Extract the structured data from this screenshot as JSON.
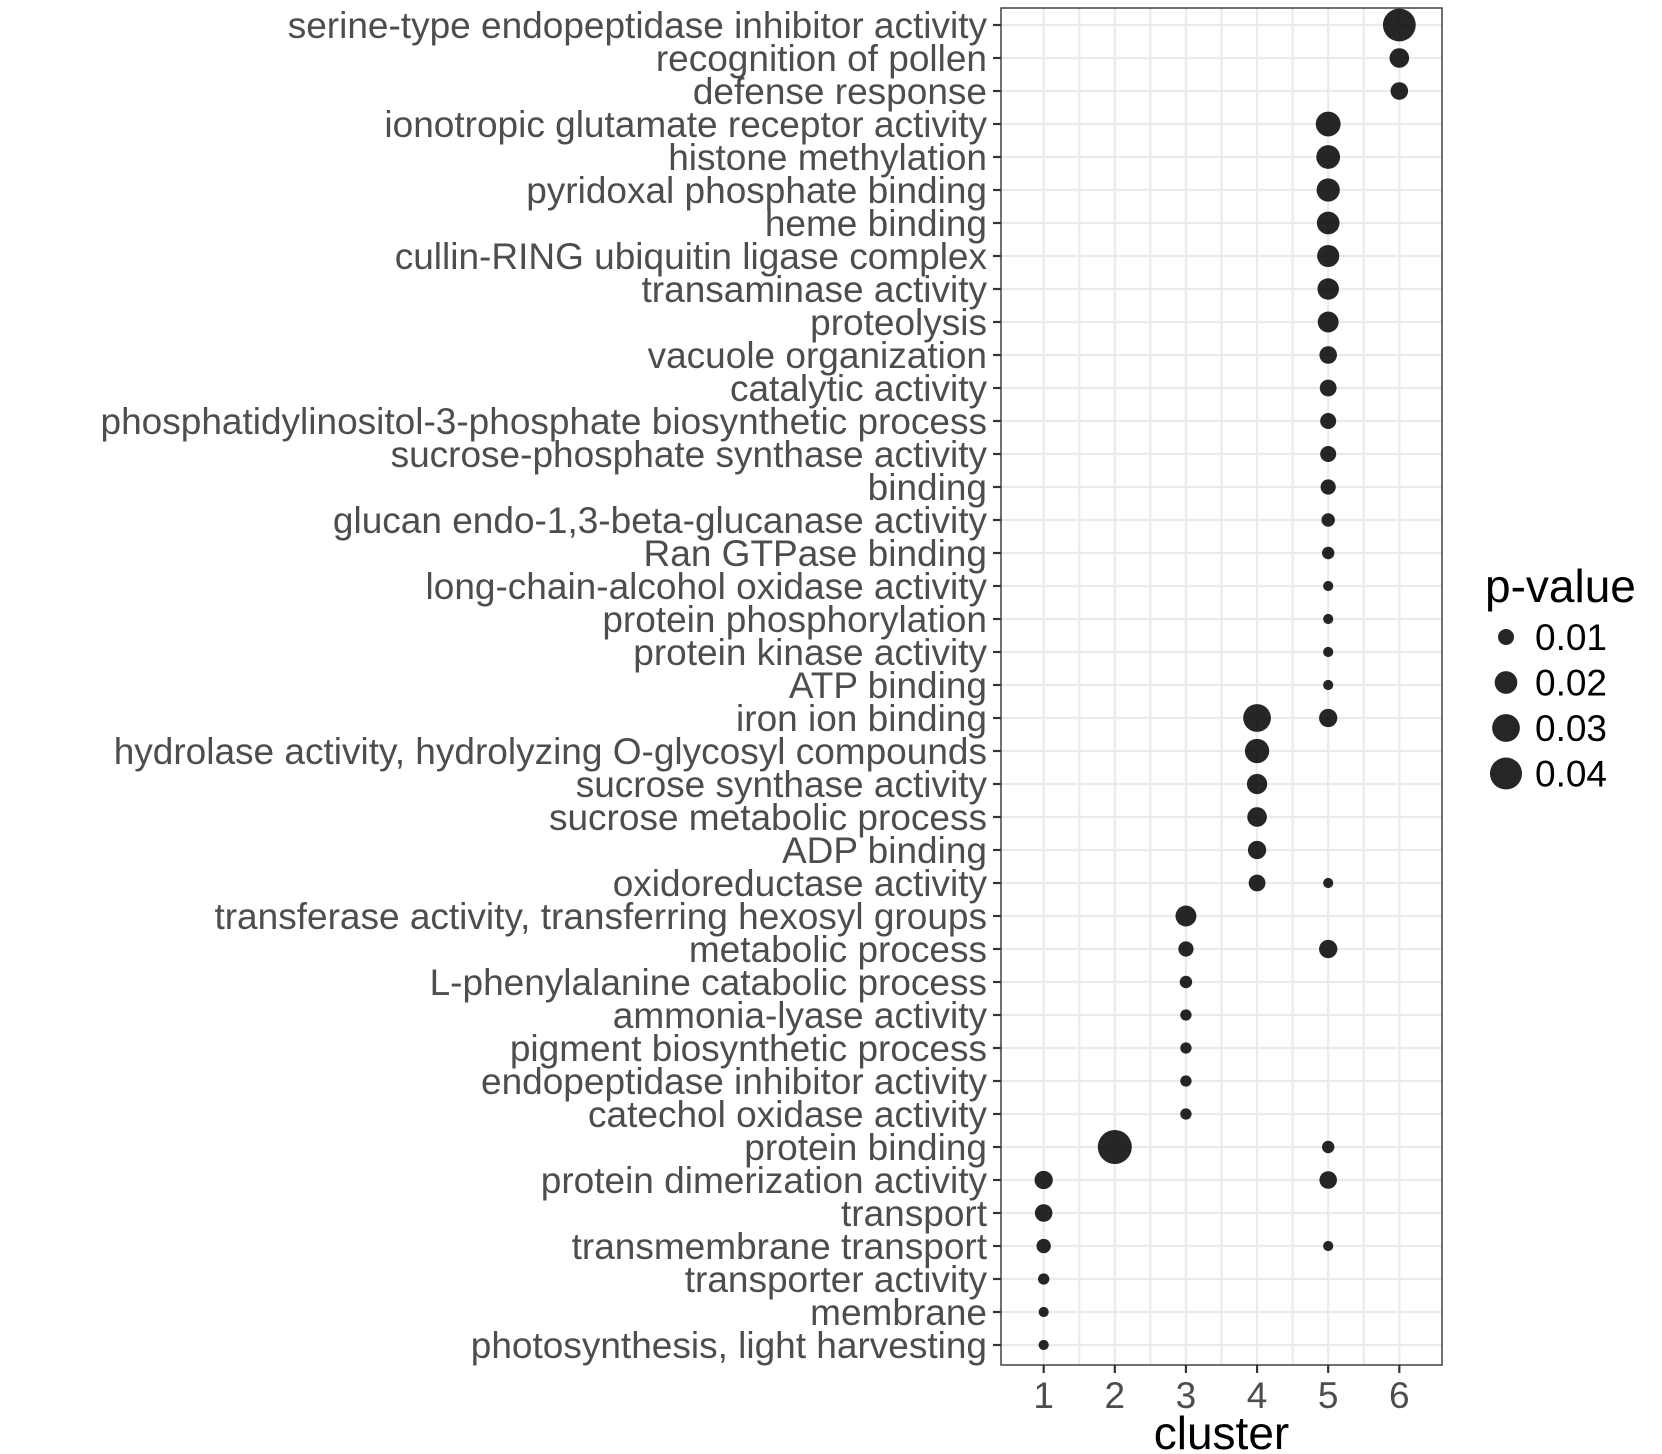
{
  "chart_data": {
    "type": "scatter",
    "xlabel": "cluster",
    "ylabel": "",
    "x_ticks": [
      "1",
      "2",
      "3",
      "4",
      "5",
      "6"
    ],
    "xlim": [
      0.4,
      6.6
    ],
    "grid": true,
    "legend": {
      "title": "p-value",
      "placement": "right",
      "items": [
        {
          "label": "0.01",
          "value": 0.01
        },
        {
          "label": "0.02",
          "value": 0.02
        },
        {
          "label": "0.03",
          "value": 0.03
        },
        {
          "label": "0.04",
          "value": 0.04
        }
      ]
    },
    "point_color": "#000000",
    "categories": [
      "serine-type endopeptidase inhibitor activity",
      "recognition of pollen",
      "defense response",
      "ionotropic glutamate receptor activity",
      "histone methylation",
      "pyridoxal phosphate binding",
      "heme binding",
      "cullin-RING ubiquitin ligase complex",
      "transaminase activity",
      "proteolysis",
      "vacuole organization",
      "catalytic activity",
      "phosphatidylinositol-3-phosphate biosynthetic process",
      "sucrose-phosphate synthase activity",
      "binding",
      "glucan endo-1,3-beta-glucanase activity",
      "Ran GTPase binding",
      "long-chain-alcohol oxidase activity",
      "protein phosphorylation",
      "protein kinase activity",
      "ATP binding",
      "iron ion binding",
      "hydrolase activity, hydrolyzing O-glycosyl compounds",
      "sucrose synthase activity",
      "sucrose metabolic process",
      "ADP binding",
      "oxidoreductase activity",
      "transferase activity, transferring hexosyl groups",
      "metabolic process",
      "L-phenylalanine catabolic process",
      "ammonia-lyase activity",
      "pigment biosynthetic process",
      "endopeptidase inhibitor activity",
      "catechol oxidase activity",
      "protein binding",
      "protein dimerization activity",
      "transport",
      "transmembrane transport",
      "transporter activity",
      "membrane",
      "photosynthesis, light harvesting"
    ],
    "points": [
      {
        "term": "serine-type endopeptidase inhibitor activity",
        "cluster": 6,
        "pvalue": 0.042
      },
      {
        "term": "recognition of pollen",
        "cluster": 6,
        "pvalue": 0.015
      },
      {
        "term": "defense response",
        "cluster": 6,
        "pvalue": 0.012
      },
      {
        "term": "ionotropic glutamate receptor activity",
        "cluster": 5,
        "pvalue": 0.024
      },
      {
        "term": "histone methylation",
        "cluster": 5,
        "pvalue": 0.022
      },
      {
        "term": "pyridoxal phosphate binding",
        "cluster": 5,
        "pvalue": 0.021
      },
      {
        "term": "heme binding",
        "cluster": 5,
        "pvalue": 0.02
      },
      {
        "term": "cullin-RING ubiquitin ligase complex",
        "cluster": 5,
        "pvalue": 0.019
      },
      {
        "term": "transaminase activity",
        "cluster": 5,
        "pvalue": 0.018
      },
      {
        "term": "proteolysis",
        "cluster": 5,
        "pvalue": 0.017
      },
      {
        "term": "vacuole organization",
        "cluster": 5,
        "pvalue": 0.012
      },
      {
        "term": "catalytic activity",
        "cluster": 5,
        "pvalue": 0.011
      },
      {
        "term": "phosphatidylinositol-3-phosphate biosynthetic process",
        "cluster": 5,
        "pvalue": 0.01
      },
      {
        "term": "sucrose-phosphate synthase activity",
        "cluster": 5,
        "pvalue": 0.01
      },
      {
        "term": "binding",
        "cluster": 5,
        "pvalue": 0.009
      },
      {
        "term": "glucan endo-1,3-beta-glucanase activity",
        "cluster": 5,
        "pvalue": 0.007
      },
      {
        "term": "Ran GTPase binding",
        "cluster": 5,
        "pvalue": 0.006
      },
      {
        "term": "long-chain-alcohol oxidase activity",
        "cluster": 5,
        "pvalue": 0.004
      },
      {
        "term": "protein phosphorylation",
        "cluster": 5,
        "pvalue": 0.004
      },
      {
        "term": "protein kinase activity",
        "cluster": 5,
        "pvalue": 0.004
      },
      {
        "term": "ATP binding",
        "cluster": 5,
        "pvalue": 0.004
      },
      {
        "term": "iron ion binding",
        "cluster": 4,
        "pvalue": 0.03
      },
      {
        "term": "iron ion binding",
        "cluster": 5,
        "pvalue": 0.013
      },
      {
        "term": "hydrolase activity, hydrolyzing O-glycosyl compounds",
        "cluster": 4,
        "pvalue": 0.023
      },
      {
        "term": "sucrose synthase activity",
        "cluster": 4,
        "pvalue": 0.016
      },
      {
        "term": "sucrose metabolic process",
        "cluster": 4,
        "pvalue": 0.015
      },
      {
        "term": "ADP binding",
        "cluster": 4,
        "pvalue": 0.013
      },
      {
        "term": "oxidoreductase activity",
        "cluster": 4,
        "pvalue": 0.011
      },
      {
        "term": "oxidoreductase activity",
        "cluster": 5,
        "pvalue": 0.004
      },
      {
        "term": "transferase activity, transferring hexosyl groups",
        "cluster": 3,
        "pvalue": 0.017
      },
      {
        "term": "metabolic process",
        "cluster": 3,
        "pvalue": 0.009
      },
      {
        "term": "metabolic process",
        "cluster": 5,
        "pvalue": 0.013
      },
      {
        "term": "L-phenylalanine catabolic process",
        "cluster": 3,
        "pvalue": 0.006
      },
      {
        "term": "ammonia-lyase activity",
        "cluster": 3,
        "pvalue": 0.005
      },
      {
        "term": "pigment biosynthetic process",
        "cluster": 3,
        "pvalue": 0.005
      },
      {
        "term": "endopeptidase inhibitor activity",
        "cluster": 3,
        "pvalue": 0.005
      },
      {
        "term": "catechol oxidase activity",
        "cluster": 3,
        "pvalue": 0.005
      },
      {
        "term": "protein binding",
        "cluster": 2,
        "pvalue": 0.045
      },
      {
        "term": "protein binding",
        "cluster": 5,
        "pvalue": 0.006
      },
      {
        "term": "protein dimerization activity",
        "cluster": 1,
        "pvalue": 0.013
      },
      {
        "term": "protein dimerization activity",
        "cluster": 5,
        "pvalue": 0.012
      },
      {
        "term": "transport",
        "cluster": 1,
        "pvalue": 0.012
      },
      {
        "term": "transmembrane transport",
        "cluster": 1,
        "pvalue": 0.008
      },
      {
        "term": "transmembrane transport",
        "cluster": 5,
        "pvalue": 0.004
      },
      {
        "term": "transporter activity",
        "cluster": 1,
        "pvalue": 0.005
      },
      {
        "term": "membrane",
        "cluster": 1,
        "pvalue": 0.004
      },
      {
        "term": "photosynthesis, light harvesting",
        "cluster": 1,
        "pvalue": 0.004
      }
    ]
  }
}
